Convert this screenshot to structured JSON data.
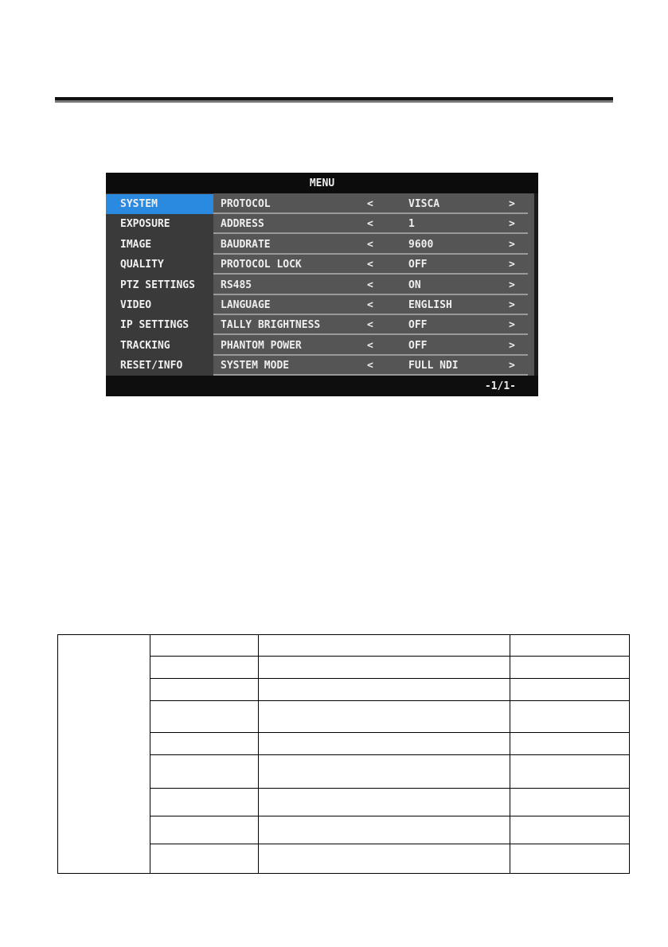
{
  "osd_menu": {
    "title": "MENU",
    "categories": [
      "SYSTEM",
      "EXPOSURE",
      "IMAGE",
      "QUALITY",
      "PTZ SETTINGS",
      "VIDEO",
      "IP SETTINGS",
      "TRACKING",
      "RESET/INFO"
    ],
    "selected_category": "SYSTEM",
    "selection_color": "#2a8ae0",
    "items": [
      {
        "label": "PROTOCOL",
        "value": "VISCA"
      },
      {
        "label": "ADDRESS",
        "value": "1"
      },
      {
        "label": "BAUDRATE",
        "value": "9600"
      },
      {
        "label": "PROTOCOL LOCK",
        "value": "OFF"
      },
      {
        "label": "RS485",
        "value": "ON"
      },
      {
        "label": "LANGUAGE",
        "value": "ENGLISH"
      },
      {
        "label": "TALLY BRIGHTNESS",
        "value": "OFF"
      },
      {
        "label": "PHANTOM POWER",
        "value": "OFF"
      },
      {
        "label": "SYSTEM MODE",
        "value": "FULL NDI"
      }
    ],
    "prev_symbol": "<",
    "next_symbol": ">",
    "page_indicator": "-1/1-"
  },
  "table": {
    "rows": 9,
    "columns": 4,
    "cells_empty": true
  }
}
